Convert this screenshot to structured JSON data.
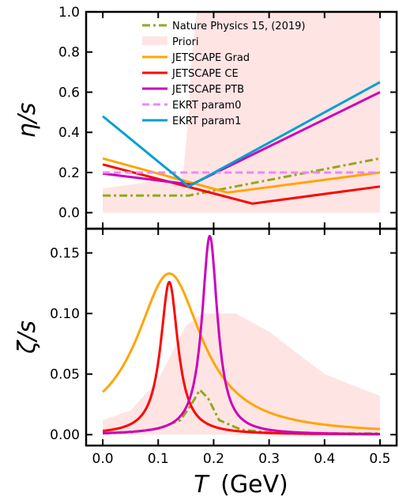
{
  "figure": {
    "xlabel_symbol": "T",
    "xlabel_unit": "(GeV)"
  },
  "chart_data": [
    {
      "type": "line",
      "panel": "top",
      "ylabel": "η/s",
      "xlim": [
        -0.03,
        0.53
      ],
      "ylim": [
        -0.08,
        1.0
      ],
      "xticks": [
        0.0,
        0.1,
        0.2,
        0.3,
        0.4,
        0.5
      ],
      "yticks": [
        0.0,
        0.2,
        0.4,
        0.6,
        0.8,
        1.0
      ],
      "ytick_labels": [
        "0.0",
        "0.2",
        "0.4",
        "0.6",
        "0.8",
        "1.0"
      ],
      "legend_placement": "top-center",
      "grid": false,
      "band": {
        "name": "Priori",
        "color": "#ffe4e4",
        "upper": [
          [
            0.0,
            0.12
          ],
          [
            0.05,
            0.14
          ],
          [
            0.1,
            0.16
          ],
          [
            0.145,
            0.19
          ],
          [
            0.155,
            0.5
          ],
          [
            0.16,
            0.75
          ],
          [
            0.165,
            0.9
          ],
          [
            0.17,
            1.0
          ],
          [
            0.5,
            1.0
          ]
        ],
        "lower": [
          [
            0.0,
            0.0
          ],
          [
            0.5,
            0.0
          ]
        ]
      },
      "series": [
        {
          "name": "Nature Physics 15, (2019)",
          "color": "#8faa1a",
          "style": "dashdot",
          "x": [
            0.0,
            0.155,
            0.5
          ],
          "y": [
            0.085,
            0.085,
            0.27
          ]
        },
        {
          "name": "JETSCAPE Grad",
          "color": "#ffa500",
          "style": "solid",
          "x": [
            0.0,
            0.225,
            0.5
          ],
          "y": [
            0.27,
            0.1,
            0.2
          ]
        },
        {
          "name": "JETSCAPE CE",
          "color": "#ff0000",
          "style": "solid",
          "x": [
            0.0,
            0.27,
            0.5
          ],
          "y": [
            0.24,
            0.045,
            0.13
          ]
        },
        {
          "name": "JETSCAPE PTB",
          "color": "#cc00bb",
          "style": "solid",
          "x": [
            0.0,
            0.16,
            0.5
          ],
          "y": [
            0.195,
            0.14,
            0.6
          ]
        },
        {
          "name": "EKRT param0",
          "color": "#ee88ee",
          "style": "dashed",
          "x": [
            0.0,
            0.5
          ],
          "y": [
            0.2,
            0.2
          ]
        },
        {
          "name": "EKRT param1",
          "color": "#00a0d0",
          "style": "solid",
          "x": [
            0.0,
            0.155,
            0.5
          ],
          "y": [
            0.48,
            0.13,
            0.65
          ]
        }
      ]
    },
    {
      "type": "line",
      "panel": "bottom",
      "ylabel": "ζ/s",
      "xlim": [
        -0.03,
        0.53
      ],
      "ylim": [
        -0.009,
        0.17
      ],
      "xticks": [
        0.0,
        0.1,
        0.2,
        0.3,
        0.4,
        0.5
      ],
      "xtick_labels": [
        "0.0",
        "0.1",
        "0.2",
        "0.3",
        "0.4",
        "0.5"
      ],
      "yticks": [
        0.0,
        0.05,
        0.1,
        0.15
      ],
      "ytick_labels": [
        "0.00",
        "0.05",
        "0.10",
        "0.15"
      ],
      "grid": false,
      "band": {
        "name": "Priori",
        "color": "#ffe4e4",
        "upper": [
          [
            0.0,
            0.012
          ],
          [
            0.05,
            0.02
          ],
          [
            0.1,
            0.045
          ],
          [
            0.15,
            0.09
          ],
          [
            0.18,
            0.1
          ],
          [
            0.24,
            0.1
          ],
          [
            0.3,
            0.085
          ],
          [
            0.4,
            0.05
          ],
          [
            0.5,
            0.032
          ]
        ],
        "lower": [
          [
            0.0,
            0.0
          ],
          [
            0.5,
            0.0
          ]
        ]
      },
      "series": [
        {
          "name": "Nature Physics 15, (2019)",
          "color": "#8faa1a",
          "style": "dashdot",
          "x": [
            0.0,
            0.05,
            0.1,
            0.14,
            0.16,
            0.175,
            0.19,
            0.21,
            0.25,
            0.3,
            0.4,
            0.5
          ],
          "y": [
            0.001,
            0.002,
            0.005,
            0.012,
            0.025,
            0.037,
            0.03,
            0.012,
            0.004,
            0.002,
            0.001,
            0.001
          ]
        },
        {
          "name": "JETSCAPE Grad",
          "color": "#ffa500",
          "style": "solid",
          "peak": 0.133,
          "center": 0.12,
          "width": 0.072,
          "shape": "lorentz"
        },
        {
          "name": "JETSCAPE CE",
          "color": "#ff0000",
          "style": "solid",
          "peak": 0.126,
          "center": 0.12,
          "width": 0.019,
          "shape": "lorentz"
        },
        {
          "name": "JETSCAPE PTB",
          "color": "#cc00bb",
          "style": "solid",
          "peak": 0.164,
          "center": 0.193,
          "width": 0.017,
          "shape": "lorentz"
        }
      ]
    }
  ]
}
